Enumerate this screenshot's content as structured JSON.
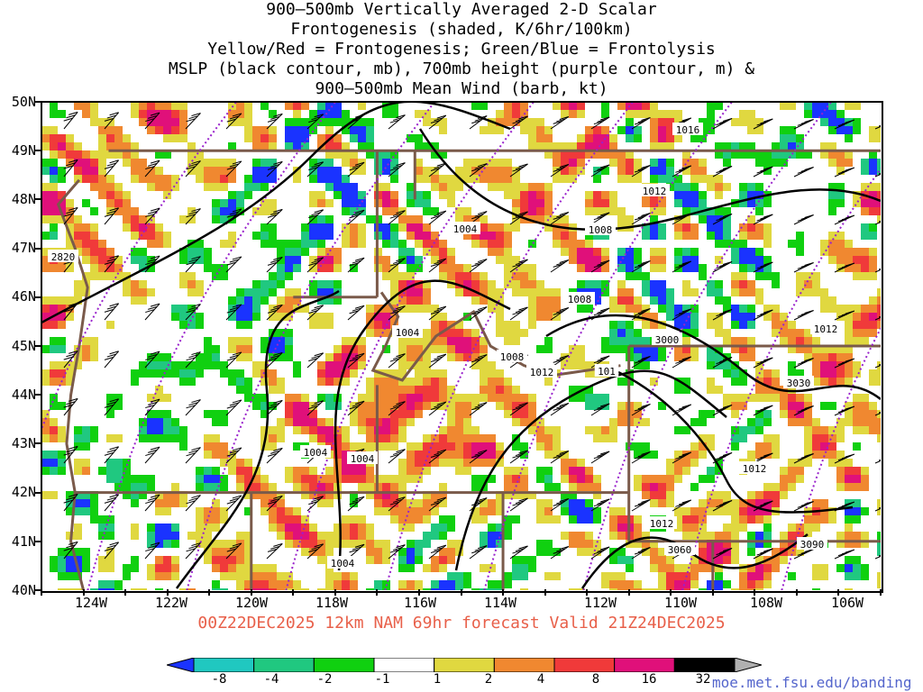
{
  "title": {
    "lines": [
      "900–500mb Vertically Averaged 2-D Scalar",
      "Frontogenesis (shaded, K/6hr/100km)",
      "Yellow/Red = Frontogenesis;  Green/Blue = Frontolysis",
      "MSLP (black contour, mb), 700mb height (purple contour, m) &",
      "900–500mb Mean Wind (barb, kt)"
    ]
  },
  "map": {
    "region": "Pacific Northwest / Northern Rockies",
    "lat_range": [
      40,
      50
    ],
    "lon_range": [
      -125,
      -105
    ],
    "lat_labels": [
      "50N",
      "49N",
      "48N",
      "47N",
      "46N",
      "45N",
      "44N",
      "43N",
      "42N",
      "41N",
      "40N"
    ],
    "lon_labels": [
      "124W",
      "122W",
      "120W",
      "118W",
      "116W",
      "114W",
      "112W",
      "110W",
      "108W",
      "106W"
    ],
    "mslp_labels": [
      "1016",
      "1012",
      "1008",
      "1004",
      "1008",
      "1004",
      "1008",
      "1012",
      "1012",
      "1004",
      "1004",
      "1012",
      "1004",
      "101",
      "1012"
    ],
    "height_labels": [
      "2820",
      "3000",
      "3030",
      "3060",
      "3090"
    ],
    "colors": {
      "mslp_contour": "#000000",
      "height_contour": "#9922cc",
      "barb": "#000000",
      "border": "#7a5a4a",
      "state_lines": "#7a5a4a"
    },
    "layers": [
      "frontogenesis shading",
      "MSLP contours",
      "700mb height contours",
      "wind barbs",
      "political boundaries"
    ]
  },
  "forecast": {
    "text": "00Z22DEC2025 12km NAM 69hr forecast Valid 21Z24DEC2025",
    "color": "#e8604a"
  },
  "colorbar": {
    "labels": [
      "-8",
      "-4",
      "-2",
      "-1",
      "1",
      "2",
      "4",
      "8",
      "16",
      "32"
    ],
    "colors": [
      "#1a33ff",
      "#20c8c0",
      "#20c880",
      "#10d010",
      "#ffffff",
      "#e0d840",
      "#f08830",
      "#f03a3a",
      "#e0107a",
      "#000000",
      "#b0b0b0"
    ]
  },
  "credit": "moe.met.fsu.edu/banding"
}
